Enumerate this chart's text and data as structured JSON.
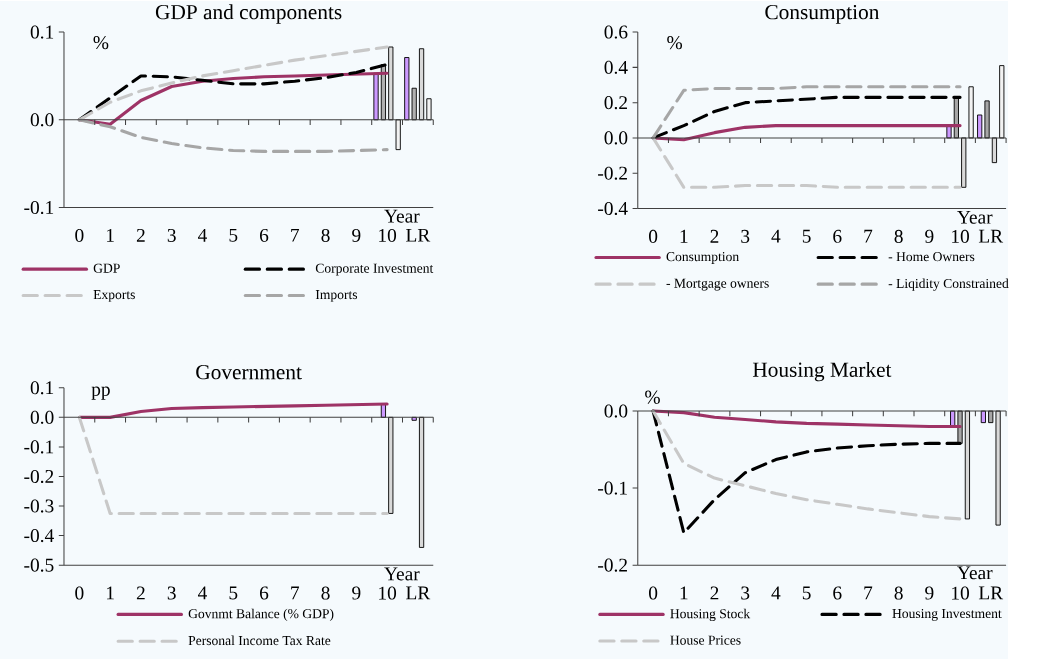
{
  "chart_data": [
    {
      "type": "line",
      "title": "GDP and components",
      "xlabel": "Year",
      "ylabel": "%",
      "categories": [
        "0",
        "1",
        "2",
        "3",
        "4",
        "5",
        "6",
        "7",
        "8",
        "9",
        "10",
        "LR"
      ],
      "ylim": [
        -0.1,
        0.1
      ],
      "yticks": [
        {
          "value": -0.1,
          "label": "-0.1"
        },
        {
          "value": 0,
          "label": "0.0"
        },
        {
          "value": 0.1,
          "label": "0.1"
        }
      ],
      "legend": "bottom",
      "series": [
        {
          "name": "GDP",
          "color": "#9e3366",
          "line_style": "solid",
          "values": [
            0,
            -0.005,
            0.022,
            0.038,
            0.044,
            0.047,
            0.049,
            0.05,
            0.051,
            0.052,
            0.053,
            null
          ]
        },
        {
          "name": "Corporate Investment",
          "color": "#000000",
          "line_style": "dashed",
          "values": [
            0,
            0.025,
            0.05,
            0.049,
            0.045,
            0.041,
            0.041,
            0.044,
            0.048,
            0.054,
            0.063,
            null
          ]
        },
        {
          "name": "Exports",
          "color": "#c8c8c8",
          "line_style": "dashed",
          "values": [
            0,
            0.02,
            0.033,
            0.042,
            0.05,
            0.056,
            0.062,
            0.068,
            0.073,
            0.078,
            0.083,
            null
          ]
        },
        {
          "name": "Imports",
          "color": "#a6a6a6",
          "line_style": "dashed",
          "values": [
            0,
            -0.008,
            -0.02,
            -0.027,
            -0.032,
            -0.035,
            -0.036,
            -0.036,
            -0.036,
            -0.035,
            -0.034,
            null
          ]
        },
        {
          "type": "bar",
          "color": "#cc99ff",
          "values": [
            null,
            null,
            null,
            null,
            null,
            null,
            null,
            null,
            null,
            null,
            0.053,
            0.071
          ]
        },
        {
          "type": "bar",
          "color": "#b0b0b0",
          "values": [
            null,
            null,
            null,
            null,
            null,
            null,
            null,
            null,
            null,
            null,
            0.063,
            0.036
          ]
        },
        {
          "type": "bar",
          "color": "#d9d9d9",
          "values": [
            null,
            null,
            null,
            null,
            null,
            null,
            null,
            null,
            null,
            null,
            0.083,
            0.081
          ]
        },
        {
          "type": "bar",
          "color": "#f2f2f2",
          "values": [
            null,
            null,
            null,
            null,
            null,
            null,
            null,
            null,
            null,
            null,
            -0.034,
            0.024
          ]
        }
      ]
    },
    {
      "type": "line",
      "title": "Consumption",
      "xlabel": "Year",
      "ylabel": "%",
      "categories": [
        "0",
        "1",
        "2",
        "3",
        "4",
        "5",
        "6",
        "7",
        "8",
        "9",
        "10",
        "LR"
      ],
      "ylim": [
        -0.4,
        0.6
      ],
      "yticks": [
        {
          "value": -0.4,
          "label": "-0.4"
        },
        {
          "value": -0.2,
          "label": "-0.2"
        },
        {
          "value": 0,
          "label": "0.0"
        },
        {
          "value": 0.2,
          "label": "0.2"
        },
        {
          "value": 0.4,
          "label": "0.4"
        },
        {
          "value": 0.6,
          "label": "0.6"
        }
      ],
      "legend": "bottom",
      "series": [
        {
          "name": "Consumption",
          "color": "#9e3366",
          "line_style": "solid",
          "values": [
            0,
            -0.01,
            0.03,
            0.06,
            0.07,
            0.07,
            0.07,
            0.07,
            0.07,
            0.07,
            0.07,
            null
          ]
        },
        {
          "name": "- Home Owners",
          "color": "#000000",
          "line_style": "dashed",
          "values": [
            0,
            0.07,
            0.15,
            0.2,
            0.21,
            0.22,
            0.23,
            0.23,
            0.23,
            0.23,
            0.23,
            null
          ]
        },
        {
          "name": "- Mortgage owners",
          "color": "#c8c8c8",
          "line_style": "dashed",
          "values": [
            0,
            -0.28,
            -0.28,
            -0.27,
            -0.27,
            -0.27,
            -0.28,
            -0.28,
            -0.28,
            -0.28,
            -0.28,
            null
          ]
        },
        {
          "name": "- Liqidity Constrained",
          "color": "#a6a6a6",
          "line_style": "dashed",
          "values": [
            0,
            0.27,
            0.28,
            0.28,
            0.28,
            0.29,
            0.29,
            0.29,
            0.29,
            0.29,
            0.29,
            null
          ]
        },
        {
          "type": "bar",
          "color": "#cc99ff",
          "values": [
            null,
            null,
            null,
            null,
            null,
            null,
            null,
            null,
            null,
            null,
            0.07,
            0.13
          ]
        },
        {
          "type": "bar",
          "color": "#a6a6a6",
          "values": [
            null,
            null,
            null,
            null,
            null,
            null,
            null,
            null,
            null,
            null,
            0.23,
            0.21
          ]
        },
        {
          "type": "bar",
          "color": "#d9d9d9",
          "values": [
            null,
            null,
            null,
            null,
            null,
            null,
            null,
            null,
            null,
            null,
            -0.28,
            -0.14
          ]
        },
        {
          "type": "bar",
          "color": "#f2f2f2",
          "values": [
            null,
            null,
            null,
            null,
            null,
            null,
            null,
            null,
            null,
            null,
            0.29,
            0.41
          ]
        }
      ]
    },
    {
      "type": "line",
      "title": "Government",
      "xlabel": "Year",
      "ylabel": "pp",
      "categories": [
        "0",
        "1",
        "2",
        "3",
        "4",
        "5",
        "6",
        "7",
        "8",
        "9",
        "10",
        "LR"
      ],
      "ylim": [
        -0.5,
        0.1
      ],
      "yticks": [
        {
          "value": -0.5,
          "label": "-0.5"
        },
        {
          "value": -0.4,
          "label": "-0.4"
        },
        {
          "value": -0.3,
          "label": "-0.3"
        },
        {
          "value": -0.2,
          "label": "-0.2"
        },
        {
          "value": -0.1,
          "label": "-0.1"
        },
        {
          "value": 0,
          "label": "0.0"
        },
        {
          "value": 0.1,
          "label": "0.1"
        }
      ],
      "legend": "bottom",
      "series": [
        {
          "name": "Govnmt Balance (% GDP)",
          "color": "#9e3366",
          "line_style": "solid",
          "values": [
            0,
            0,
            0.02,
            0.03,
            0.033,
            0.035,
            0.037,
            0.039,
            0.041,
            0.043,
            0.045,
            null
          ]
        },
        {
          "name": "Personal Income Tax Rate",
          "color": "#c8c8c8",
          "line_style": "dashed",
          "values": [
            0,
            -0.325,
            -0.325,
            -0.325,
            -0.325,
            -0.325,
            -0.325,
            -0.325,
            -0.325,
            -0.325,
            -0.325,
            null
          ]
        },
        {
          "type": "bar",
          "color": "#cc99ff",
          "values": [
            null,
            null,
            null,
            null,
            null,
            null,
            null,
            null,
            null,
            null,
            0.045,
            -0.01
          ]
        },
        {
          "type": "bar",
          "color": "#d9d9d9",
          "values": [
            null,
            null,
            null,
            null,
            null,
            null,
            null,
            null,
            null,
            null,
            -0.325,
            -0.44
          ]
        }
      ]
    },
    {
      "type": "line",
      "title": "Housing Market",
      "xlabel": "Year",
      "ylabel": "%",
      "categories": [
        "0",
        "1",
        "2",
        "3",
        "4",
        "5",
        "6",
        "7",
        "8",
        "9",
        "10",
        "LR"
      ],
      "ylim": [
        -0.2,
        0
      ],
      "yticks": [
        {
          "value": -0.2,
          "label": "-0.2"
        },
        {
          "value": -0.1,
          "label": "-0.1"
        },
        {
          "value": 0,
          "label": "0.0"
        }
      ],
      "legend": "bottom",
      "series": [
        {
          "name": "Housing Stock",
          "color": "#9e3366",
          "line_style": "solid",
          "values": [
            0,
            -0.002,
            -0.008,
            -0.011,
            -0.014,
            -0.016,
            -0.017,
            -0.018,
            -0.019,
            -0.02,
            -0.02,
            null
          ]
        },
        {
          "name": "Housing Investment",
          "color": "#000000",
          "line_style": "dashed",
          "values": [
            0,
            -0.158,
            -0.115,
            -0.08,
            -0.063,
            -0.053,
            -0.048,
            -0.045,
            -0.043,
            -0.042,
            -0.042,
            null
          ]
        },
        {
          "name": "House Prices",
          "color": "#c8c8c8",
          "line_style": "dashed",
          "values": [
            0,
            -0.068,
            -0.087,
            -0.097,
            -0.107,
            -0.115,
            -0.121,
            -0.127,
            -0.132,
            -0.137,
            -0.14,
            null
          ]
        },
        {
          "type": "bar",
          "color": "#cc99ff",
          "values": [
            null,
            null,
            null,
            null,
            null,
            null,
            null,
            null,
            null,
            null,
            -0.02,
            -0.015
          ]
        },
        {
          "type": "bar",
          "color": "#a6a6a6",
          "values": [
            null,
            null,
            null,
            null,
            null,
            null,
            null,
            null,
            null,
            null,
            -0.042,
            -0.015
          ]
        },
        {
          "type": "bar",
          "color": "#d9d9d9",
          "values": [
            null,
            null,
            null,
            null,
            null,
            null,
            null,
            null,
            null,
            null,
            -0.14,
            -0.148
          ]
        }
      ]
    }
  ]
}
